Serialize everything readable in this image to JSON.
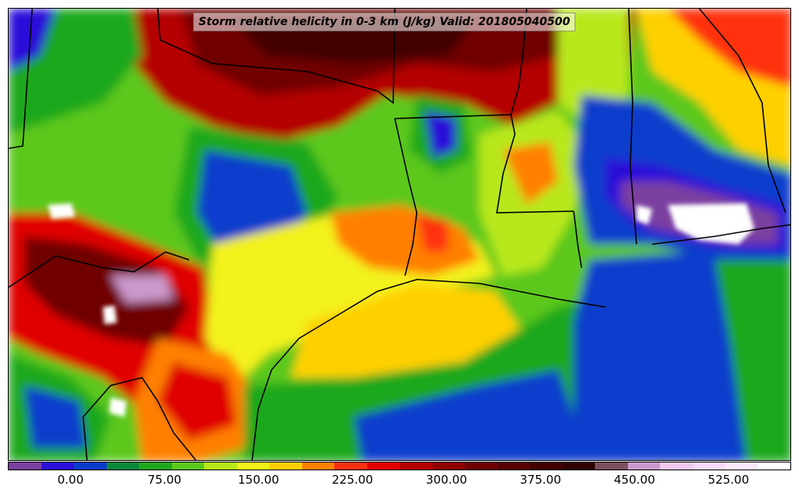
{
  "title": "Storm relative helicity in 0-3 km (J/kg) Valid: 201805040500",
  "colorbar": {
    "colors": [
      "#7b3fa0",
      "#2a0fd8",
      "#0a3ccc",
      "#0a8a3a",
      "#1fa81f",
      "#5cc81c",
      "#b8e81a",
      "#f2f21a",
      "#ffd000",
      "#ff8000",
      "#ff3010",
      "#e00000",
      "#b40000",
      "#900000",
      "#700000",
      "#580000",
      "#420000",
      "#300000",
      "#7a5060",
      "#cc99cc",
      "#f0c8f0",
      "#f8d8f8",
      "#fce8fc",
      "#ffffff"
    ],
    "tick_labels": [
      "0.00",
      "75.00",
      "150.00",
      "225.00",
      "300.00",
      "375.00",
      "450.00",
      "525.00"
    ],
    "tick_values": [
      0,
      75,
      150,
      225,
      300,
      375,
      450,
      525
    ],
    "min": -50,
    "max": 575
  },
  "palette": {
    "purple": "#7b3fa0",
    "blue": "#2a0fd8",
    "dark_blue": "#0a3ccc",
    "dark_green": "#0a8a3a",
    "green": "#1fa81f",
    "light_green": "#5cc81c",
    "yellow_green": "#b8e81a",
    "yellow": "#f2f21a",
    "gold": "#ffd000",
    "orange": "#ff8000",
    "red": "#ff3010",
    "dark_red": "#b40000",
    "maroon": "#700000",
    "pink": "#cc99cc",
    "white": "#ffffff"
  }
}
